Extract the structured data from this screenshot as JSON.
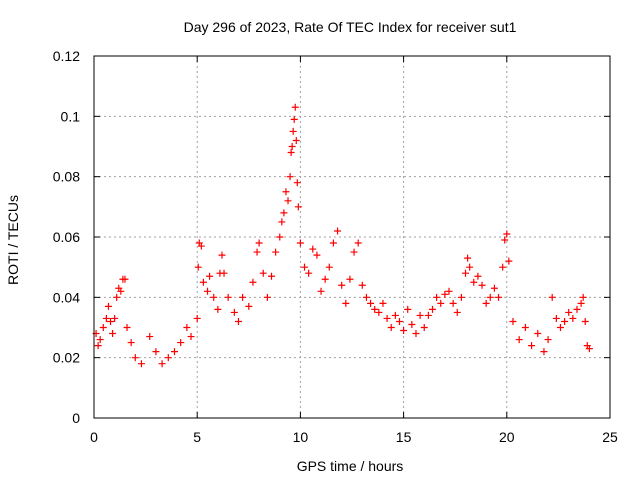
{
  "chart_data": {
    "type": "scatter",
    "title": "Day 296 of 2023, Rate Of TEC Index for receiver sut1",
    "xlabel": "GPS time / hours",
    "ylabel": "ROTI / TECUs",
    "xlim": [
      0,
      25
    ],
    "ylim": [
      0,
      0.12
    ],
    "xticks": [
      0,
      5,
      10,
      15,
      20,
      25
    ],
    "yticks": [
      0,
      0.02,
      0.04,
      0.06,
      0.08,
      0.1,
      0.12
    ],
    "xtick_labels": [
      "0",
      "5",
      "10",
      "15",
      "20",
      "25"
    ],
    "ytick_labels": [
      "0",
      "0.02",
      "0.04",
      "0.06",
      "0.08",
      "0.1",
      "0.12"
    ],
    "grid": true,
    "marker": "+",
    "color": "#ff0000",
    "series": [
      {
        "points": [
          [
            0.1,
            0.028
          ],
          [
            0.2,
            0.024
          ],
          [
            0.3,
            0.026
          ],
          [
            0.45,
            0.03
          ],
          [
            0.6,
            0.033
          ],
          [
            0.7,
            0.037
          ],
          [
            0.8,
            0.032
          ],
          [
            0.9,
            0.028
          ],
          [
            1.0,
            0.033
          ],
          [
            1.1,
            0.04
          ],
          [
            1.2,
            0.043
          ],
          [
            1.3,
            0.042
          ],
          [
            1.4,
            0.046
          ],
          [
            1.5,
            0.046
          ],
          [
            1.6,
            0.03
          ],
          [
            1.8,
            0.025
          ],
          [
            2.0,
            0.02
          ],
          [
            2.3,
            0.018
          ],
          [
            2.7,
            0.027
          ],
          [
            3.0,
            0.022
          ],
          [
            3.3,
            0.018
          ],
          [
            3.6,
            0.02
          ],
          [
            3.9,
            0.022
          ],
          [
            4.2,
            0.025
          ],
          [
            4.5,
            0.03
          ],
          [
            4.7,
            0.027
          ],
          [
            5.0,
            0.033
          ],
          [
            5.05,
            0.05
          ],
          [
            5.1,
            0.058
          ],
          [
            5.2,
            0.057
          ],
          [
            5.3,
            0.045
          ],
          [
            5.5,
            0.042
          ],
          [
            5.6,
            0.047
          ],
          [
            5.8,
            0.04
          ],
          [
            6.0,
            0.036
          ],
          [
            6.1,
            0.048
          ],
          [
            6.2,
            0.054
          ],
          [
            6.3,
            0.048
          ],
          [
            6.5,
            0.04
          ],
          [
            6.8,
            0.035
          ],
          [
            7.0,
            0.032
          ],
          [
            7.2,
            0.04
          ],
          [
            7.5,
            0.037
          ],
          [
            7.7,
            0.045
          ],
          [
            7.9,
            0.055
          ],
          [
            8.0,
            0.058
          ],
          [
            8.2,
            0.048
          ],
          [
            8.4,
            0.04
          ],
          [
            8.6,
            0.047
          ],
          [
            8.8,
            0.055
          ],
          [
            9.0,
            0.06
          ],
          [
            9.1,
            0.065
          ],
          [
            9.2,
            0.068
          ],
          [
            9.3,
            0.075
          ],
          [
            9.4,
            0.072
          ],
          [
            9.5,
            0.08
          ],
          [
            9.55,
            0.088
          ],
          [
            9.6,
            0.09
          ],
          [
            9.65,
            0.095
          ],
          [
            9.7,
            0.099
          ],
          [
            9.75,
            0.103
          ],
          [
            9.8,
            0.092
          ],
          [
            9.85,
            0.078
          ],
          [
            9.9,
            0.07
          ],
          [
            10.0,
            0.058
          ],
          [
            10.2,
            0.05
          ],
          [
            10.4,
            0.048
          ],
          [
            10.6,
            0.056
          ],
          [
            10.8,
            0.054
          ],
          [
            11.0,
            0.042
          ],
          [
            11.2,
            0.046
          ],
          [
            11.4,
            0.05
          ],
          [
            11.6,
            0.058
          ],
          [
            11.8,
            0.062
          ],
          [
            12.0,
            0.044
          ],
          [
            12.2,
            0.038
          ],
          [
            12.4,
            0.046
          ],
          [
            12.6,
            0.055
          ],
          [
            12.8,
            0.058
          ],
          [
            13.0,
            0.044
          ],
          [
            13.2,
            0.04
          ],
          [
            13.4,
            0.038
          ],
          [
            13.6,
            0.036
          ],
          [
            13.8,
            0.035
          ],
          [
            14.0,
            0.038
          ],
          [
            14.2,
            0.033
          ],
          [
            14.4,
            0.03
          ],
          [
            14.6,
            0.034
          ],
          [
            14.8,
            0.032
          ],
          [
            15.0,
            0.029
          ],
          [
            15.2,
            0.036
          ],
          [
            15.4,
            0.031
          ],
          [
            15.6,
            0.028
          ],
          [
            15.8,
            0.034
          ],
          [
            16.0,
            0.03
          ],
          [
            16.2,
            0.034
          ],
          [
            16.4,
            0.036
          ],
          [
            16.6,
            0.04
          ],
          [
            16.8,
            0.038
          ],
          [
            17.0,
            0.041
          ],
          [
            17.2,
            0.042
          ],
          [
            17.4,
            0.038
          ],
          [
            17.6,
            0.035
          ],
          [
            17.8,
            0.04
          ],
          [
            18.0,
            0.048
          ],
          [
            18.1,
            0.053
          ],
          [
            18.2,
            0.05
          ],
          [
            18.4,
            0.045
          ],
          [
            18.6,
            0.047
          ],
          [
            18.8,
            0.044
          ],
          [
            19.0,
            0.038
          ],
          [
            19.2,
            0.04
          ],
          [
            19.4,
            0.043
          ],
          [
            19.6,
            0.04
          ],
          [
            19.8,
            0.05
          ],
          [
            19.9,
            0.059
          ],
          [
            20.0,
            0.061
          ],
          [
            20.1,
            0.052
          ],
          [
            20.3,
            0.032
          ],
          [
            20.6,
            0.026
          ],
          [
            20.9,
            0.03
          ],
          [
            21.2,
            0.024
          ],
          [
            21.5,
            0.028
          ],
          [
            21.8,
            0.022
          ],
          [
            22.0,
            0.026
          ],
          [
            22.2,
            0.04
          ],
          [
            22.4,
            0.033
          ],
          [
            22.6,
            0.03
          ],
          [
            22.8,
            0.032
          ],
          [
            23.0,
            0.035
          ],
          [
            23.2,
            0.033
          ],
          [
            23.4,
            0.036
          ],
          [
            23.6,
            0.038
          ],
          [
            23.7,
            0.04
          ],
          [
            23.8,
            0.032
          ],
          [
            23.9,
            0.024
          ],
          [
            24.0,
            0.023
          ]
        ]
      }
    ]
  }
}
